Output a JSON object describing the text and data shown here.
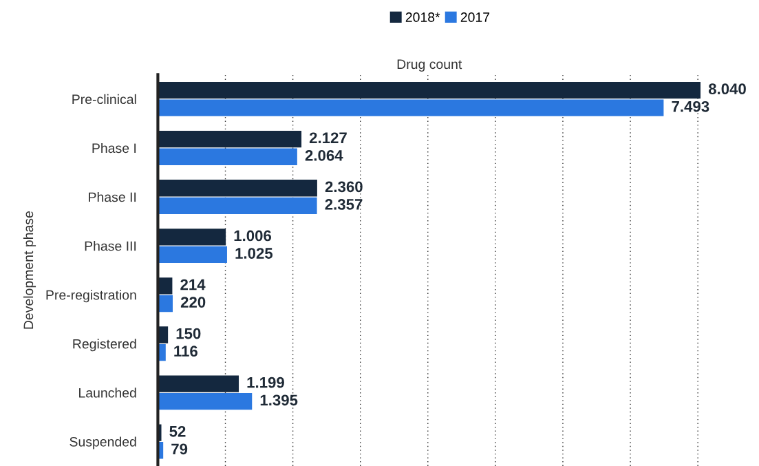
{
  "chart_data": {
    "type": "bar",
    "orientation": "horizontal",
    "xlabel": "Drug count",
    "ylabel": "Development phase",
    "categories": [
      "Pre-clinical",
      "Phase I",
      "Phase II",
      "Phase III",
      "Pre-registration",
      "Registered",
      "Launched",
      "Suspended"
    ],
    "series": [
      {
        "name": "2018*",
        "color": "#14283f",
        "values": [
          8040,
          2127,
          2360,
          1006,
          214,
          150,
          1199,
          52
        ],
        "value_labels": [
          "8.040",
          "2.127",
          "2.360",
          "1.006",
          "214",
          "150",
          "1.199",
          "52"
        ]
      },
      {
        "name": "2017",
        "color": "#2b78e0",
        "values": [
          7493,
          2064,
          2357,
          1025,
          220,
          116,
          1395,
          79
        ],
        "value_labels": [
          "7.493",
          "2.064",
          "2.357",
          "1.025",
          "220",
          "116",
          "1.395",
          "79"
        ]
      }
    ],
    "xticks": [
      {
        "value": 0,
        "label": null
      },
      {
        "value": 1000,
        "label": null
      },
      {
        "value": 2000,
        "label": null
      },
      {
        "value": 3000,
        "label": null
      },
      {
        "value": 4000,
        "label": null
      },
      {
        "value": 5000,
        "label": null
      },
      {
        "value": 6000,
        "label": null
      },
      {
        "value": 7000,
        "label": null
      },
      {
        "value": 8000,
        "label": null
      }
    ],
    "grid": "x",
    "legend": "top",
    "tick_labels": "y"
  }
}
